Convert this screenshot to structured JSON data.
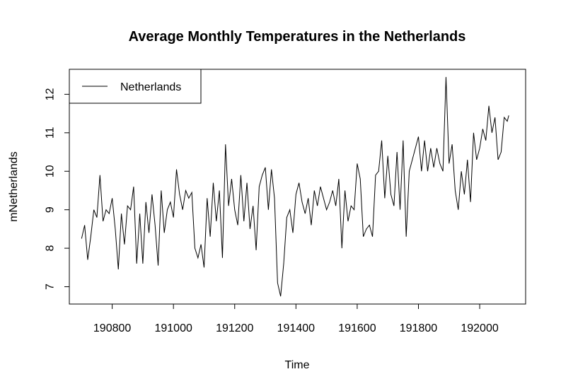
{
  "chart_data": {
    "type": "line",
    "title": "Average Monthly Temperatures in the Netherlands",
    "xlabel": "Time",
    "ylabel": "mNetherlands",
    "xlim": [
      190660,
      192150
    ],
    "ylim": [
      6.55,
      12.65
    ],
    "xticks": [
      190800,
      191000,
      191200,
      191400,
      191600,
      191800,
      192000
    ],
    "yticks": [
      7,
      8,
      9,
      10,
      11,
      12
    ],
    "grid": false,
    "legend_position": "top-left",
    "series": [
      {
        "name": "Netherlands",
        "color": "#000000",
        "points": [
          [
            190700,
            8.25
          ],
          [
            190710,
            8.6
          ],
          [
            190720,
            7.7
          ],
          [
            190730,
            8.3
          ],
          [
            190740,
            9.0
          ],
          [
            190750,
            8.8
          ],
          [
            190760,
            9.9
          ],
          [
            190770,
            8.7
          ],
          [
            190780,
            9.0
          ],
          [
            190790,
            8.9
          ],
          [
            190800,
            9.3
          ],
          [
            190810,
            8.5
          ],
          [
            190820,
            7.45
          ],
          [
            190830,
            8.9
          ],
          [
            190840,
            8.1
          ],
          [
            190850,
            9.1
          ],
          [
            190860,
            9.0
          ],
          [
            190870,
            9.6
          ],
          [
            190880,
            7.6
          ],
          [
            190890,
            8.9
          ],
          [
            190900,
            7.6
          ],
          [
            190910,
            9.2
          ],
          [
            190920,
            8.4
          ],
          [
            190930,
            9.4
          ],
          [
            190940,
            8.6
          ],
          [
            190950,
            7.55
          ],
          [
            190960,
            9.5
          ],
          [
            190970,
            8.4
          ],
          [
            190980,
            9.0
          ],
          [
            190990,
            9.2
          ],
          [
            191000,
            8.8
          ],
          [
            191010,
            10.05
          ],
          [
            191020,
            9.4
          ],
          [
            191030,
            9.0
          ],
          [
            191040,
            9.5
          ],
          [
            191050,
            9.3
          ],
          [
            191060,
            9.45
          ],
          [
            191070,
            8.0
          ],
          [
            191080,
            7.75
          ],
          [
            191090,
            8.1
          ],
          [
            191100,
            7.5
          ],
          [
            191110,
            9.3
          ],
          [
            191120,
            8.3
          ],
          [
            191130,
            9.7
          ],
          [
            191140,
            8.7
          ],
          [
            191150,
            9.5
          ],
          [
            191160,
            7.75
          ],
          [
            191170,
            10.7
          ],
          [
            191180,
            9.1
          ],
          [
            191190,
            9.8
          ],
          [
            191200,
            9.0
          ],
          [
            191210,
            8.6
          ],
          [
            191220,
            9.9
          ],
          [
            191230,
            8.7
          ],
          [
            191240,
            9.7
          ],
          [
            191250,
            8.5
          ],
          [
            191260,
            9.1
          ],
          [
            191270,
            7.95
          ],
          [
            191280,
            9.6
          ],
          [
            191290,
            9.9
          ],
          [
            191300,
            10.1
          ],
          [
            191310,
            9.0
          ],
          [
            191320,
            10.05
          ],
          [
            191330,
            9.3
          ],
          [
            191340,
            7.1
          ],
          [
            191350,
            6.75
          ],
          [
            191360,
            7.6
          ],
          [
            191370,
            8.8
          ],
          [
            191380,
            9.0
          ],
          [
            191390,
            8.4
          ],
          [
            191400,
            9.4
          ],
          [
            191410,
            9.7
          ],
          [
            191420,
            9.2
          ],
          [
            191430,
            8.9
          ],
          [
            191440,
            9.3
          ],
          [
            191450,
            8.6
          ],
          [
            191460,
            9.5
          ],
          [
            191470,
            9.1
          ],
          [
            191480,
            9.6
          ],
          [
            191490,
            9.3
          ],
          [
            191500,
            9.0
          ],
          [
            191510,
            9.2
          ],
          [
            191520,
            9.5
          ],
          [
            191530,
            9.1
          ],
          [
            191540,
            9.8
          ],
          [
            191550,
            8.0
          ],
          [
            191560,
            9.5
          ],
          [
            191570,
            8.7
          ],
          [
            191580,
            9.1
          ],
          [
            191590,
            9.0
          ],
          [
            191600,
            10.2
          ],
          [
            191610,
            9.8
          ],
          [
            191620,
            8.3
          ],
          [
            191630,
            8.5
          ],
          [
            191640,
            8.6
          ],
          [
            191650,
            8.3
          ],
          [
            191660,
            9.9
          ],
          [
            191670,
            10.0
          ],
          [
            191680,
            10.8
          ],
          [
            191690,
            9.3
          ],
          [
            191700,
            10.4
          ],
          [
            191710,
            9.4
          ],
          [
            191720,
            9.1
          ],
          [
            191730,
            10.5
          ],
          [
            191740,
            9.0
          ],
          [
            191750,
            10.8
          ],
          [
            191760,
            8.3
          ],
          [
            191770,
            10.0
          ],
          [
            191780,
            10.3
          ],
          [
            191790,
            10.6
          ],
          [
            191800,
            10.9
          ],
          [
            191810,
            10.0
          ],
          [
            191820,
            10.8
          ],
          [
            191830,
            10.0
          ],
          [
            191840,
            10.6
          ],
          [
            191850,
            10.1
          ],
          [
            191860,
            10.6
          ],
          [
            191870,
            10.2
          ],
          [
            191880,
            10.0
          ],
          [
            191890,
            12.45
          ],
          [
            191900,
            10.2
          ],
          [
            191910,
            10.7
          ],
          [
            191920,
            9.5
          ],
          [
            191930,
            9.0
          ],
          [
            191940,
            10.0
          ],
          [
            191950,
            9.4
          ],
          [
            191960,
            10.3
          ],
          [
            191970,
            9.2
          ],
          [
            191980,
            11.0
          ],
          [
            191990,
            10.3
          ],
          [
            192000,
            10.6
          ],
          [
            192010,
            11.1
          ],
          [
            192020,
            10.8
          ],
          [
            192030,
            11.7
          ],
          [
            192040,
            11.0
          ],
          [
            192050,
            11.4
          ],
          [
            192060,
            10.3
          ],
          [
            192070,
            10.5
          ],
          [
            192080,
            11.4
          ],
          [
            192090,
            11.3
          ],
          [
            192095,
            11.45
          ]
        ]
      }
    ]
  }
}
